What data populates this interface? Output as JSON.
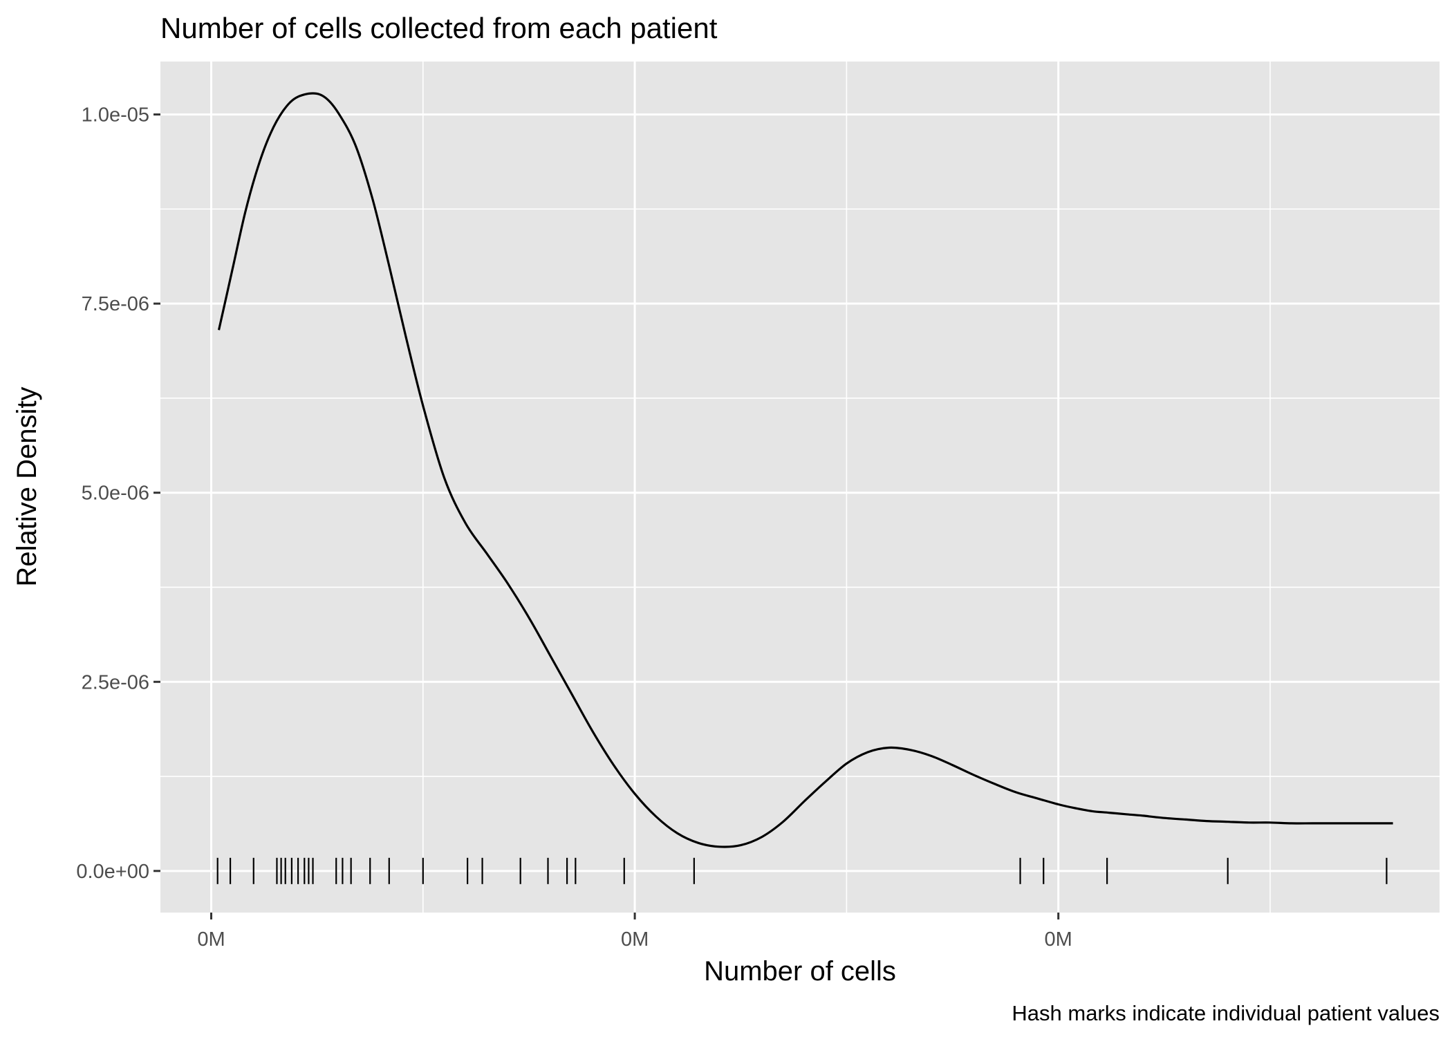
{
  "chart_data": {
    "type": "density",
    "title": "Number of cells collected from each patient",
    "xlabel": "Number of cells",
    "ylabel": "Relative Density",
    "caption": "Hash marks indicate individual patient values",
    "xlim": [
      -12000,
      290000
    ],
    "ylim": [
      -5.5e-07,
      1.07e-05
    ],
    "x_ticks": [
      {
        "value": 0,
        "label": "0M"
      },
      {
        "value": 100000,
        "label": "0M"
      },
      {
        "value": 200000,
        "label": "0M"
      }
    ],
    "x_minor_ticks": [
      50000,
      150000,
      250000
    ],
    "y_ticks": [
      {
        "value": 0,
        "label": "0.0e+00"
      },
      {
        "value": 2.5e-06,
        "label": "2.5e-06"
      },
      {
        "value": 5e-06,
        "label": "5.0e-06"
      },
      {
        "value": 7.5e-06,
        "label": "7.5e-06"
      },
      {
        "value": 1e-05,
        "label": "1.0e-05"
      }
    ],
    "y_minor_ticks": [
      1.25e-06,
      3.75e-06,
      6.25e-06,
      8.75e-06
    ],
    "grid": true,
    "density_curve": {
      "x": [
        1800,
        5000,
        8000,
        11000,
        14000,
        17000,
        20000,
        24000,
        27000,
        30000,
        34000,
        38000,
        42000,
        46000,
        50000,
        55000,
        60000,
        65000,
        70000,
        75000,
        80000,
        85000,
        90000,
        95000,
        100000,
        105000,
        110000,
        115000,
        120000,
        125000,
        130000,
        135000,
        140000,
        145000,
        150000,
        155000,
        160000,
        165000,
        170000,
        175000,
        180000,
        185000,
        190000,
        195000,
        200000,
        204000,
        208000,
        212000,
        216000,
        220000,
        225000,
        230000,
        235000,
        240000,
        245000,
        250000,
        255000,
        260000,
        265000,
        270000,
        275000,
        279000
      ],
      "y": [
        7.15e-06,
        7.95e-06,
        8.7e-06,
        9.3e-06,
        9.75e-06,
        1.005e-05,
        1.022e-05,
        1.028e-05,
        1.022e-05,
        1.002e-05,
        9.6e-06,
        8.9e-06,
        8e-06,
        7.05e-06,
        6.15e-06,
        5.2e-06,
        4.6e-06,
        4.2e-06,
        3.8e-06,
        3.35e-06,
        2.85e-06,
        2.35e-06,
        1.85e-06,
        1.4e-06,
        1.02e-06,
        7.2e-07,
        5e-07,
        3.7e-07,
        3.2e-07,
        3.4e-07,
        4.5e-07,
        6.5e-07,
        9.2e-07,
        1.18e-06,
        1.42e-06,
        1.57e-06,
        1.63e-06,
        1.6e-06,
        1.52e-06,
        1.4e-06,
        1.27e-06,
        1.15e-06,
        1.04e-06,
        9.6e-07,
        8.8e-07,
        8.3e-07,
        7.9e-07,
        7.7e-07,
        7.5e-07,
        7.3e-07,
        7e-07,
        6.8e-07,
        6.6e-07,
        6.5e-07,
        6.4e-07,
        6.4e-07,
        6.3e-07,
        6.3e-07,
        6.3e-07,
        6.3e-07,
        6.3e-07,
        6.3e-07
      ]
    },
    "rug_values": [
      1500,
      4500,
      10000,
      15500,
      16500,
      17500,
      19000,
      20500,
      22000,
      23000,
      24000,
      29500,
      31000,
      33000,
      37500,
      42000,
      50000,
      60500,
      64000,
      73000,
      79500,
      84000,
      86000,
      97500,
      114000,
      191000,
      196500,
      211500,
      240000,
      277500
    ]
  }
}
